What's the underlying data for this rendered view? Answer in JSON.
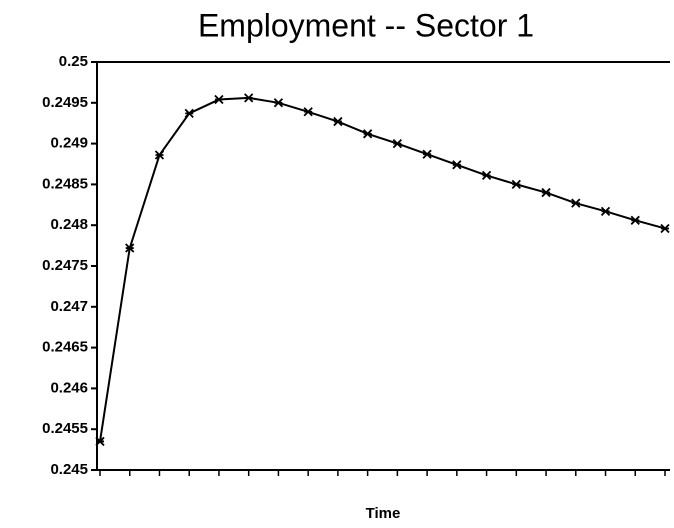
{
  "chart_data": {
    "type": "line",
    "title": "Employment -- Sector 1",
    "x_label": "Time",
    "categories": [
      null,
      null,
      null,
      null,
      null,
      null,
      null,
      null,
      null,
      null,
      null,
      null,
      null,
      null,
      null,
      null,
      null,
      null,
      null,
      null
    ],
    "series": [
      {
        "color": "#000000",
        "values": [
          0.24535,
          0.24772,
          0.24886,
          0.24937,
          0.24954,
          0.24956,
          0.2495,
          0.24939,
          0.24927,
          0.24912,
          0.249,
          0.24887,
          0.24874,
          0.24861,
          0.2485,
          0.2484,
          0.24827,
          0.24817,
          0.24806,
          0.24796
        ]
      }
    ],
    "ylim": [
      0.245,
      0.25
    ],
    "yticks": [
      0.245,
      0.2455,
      0.246,
      0.2465,
      0.247,
      0.2475,
      0.248,
      0.2485,
      0.249,
      0.2495,
      0.25
    ],
    "grid": false
  }
}
